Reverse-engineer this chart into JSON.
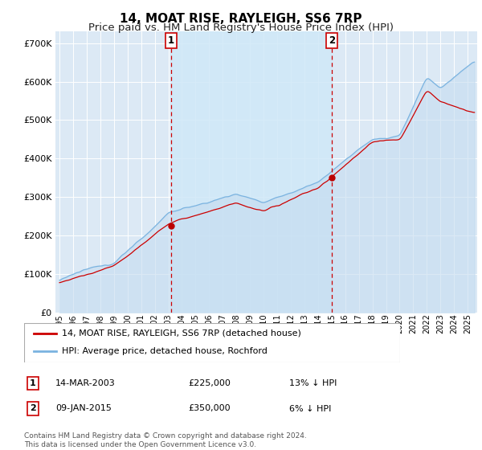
{
  "title": "14, MOAT RISE, RAYLEIGH, SS6 7RP",
  "subtitle": "Price paid vs. HM Land Registry's House Price Index (HPI)",
  "title_fontsize": 11,
  "subtitle_fontsize": 9.5,
  "background_color": "#ffffff",
  "plot_bg_color": "#dce9f5",
  "grid_color": "#ffffff",
  "ylabel_ticks": [
    "£0",
    "£100K",
    "£200K",
    "£300K",
    "£400K",
    "£500K",
    "£600K",
    "£700K"
  ],
  "ytick_values": [
    0,
    100000,
    200000,
    300000,
    400000,
    500000,
    600000,
    700000
  ],
  "ylim": [
    0,
    730000
  ],
  "xlim_start": 1994.7,
  "xlim_end": 2025.7,
  "sale1_x": 2003.2,
  "sale1_y": 225000,
  "sale2_x": 2015.03,
  "sale2_y": 350000,
  "sale_marker_color": "#bb0000",
  "hpi_line_color": "#7ab3e0",
  "hpi_fill_color": "#c5dcf0",
  "price_line_color": "#cc0000",
  "vline_color": "#cc0000",
  "shade_between_color": "#d0e8f8",
  "legend_entries": [
    "14, MOAT RISE, RAYLEIGH, SS6 7RP (detached house)",
    "HPI: Average price, detached house, Rochford"
  ],
  "table_rows": [
    [
      "1",
      "14-MAR-2003",
      "£225,000",
      "13% ↓ HPI"
    ],
    [
      "2",
      "09-JAN-2015",
      "£350,000",
      "6% ↓ HPI"
    ]
  ],
  "footnote": "Contains HM Land Registry data © Crown copyright and database right 2024.\nThis data is licensed under the Open Government Licence v3.0.",
  "xtick_years": [
    1995,
    1996,
    1997,
    1998,
    1999,
    2000,
    2001,
    2002,
    2003,
    2004,
    2005,
    2006,
    2007,
    2008,
    2009,
    2010,
    2011,
    2012,
    2013,
    2014,
    2015,
    2016,
    2017,
    2018,
    2019,
    2020,
    2021,
    2022,
    2023,
    2024,
    2025
  ]
}
